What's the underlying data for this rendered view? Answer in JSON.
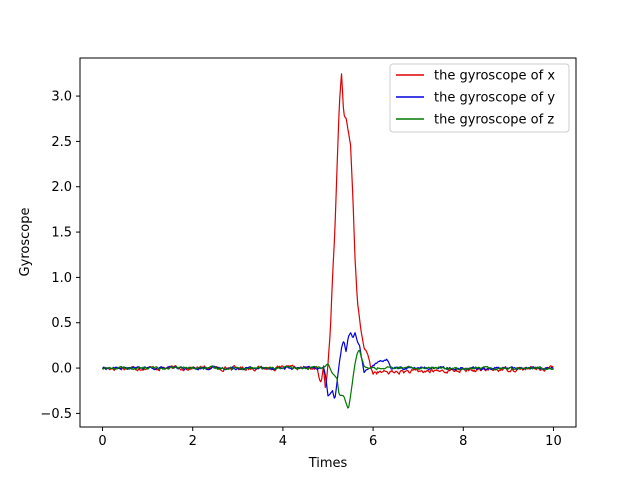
{
  "chart_data": {
    "type": "line",
    "xlabel": "Times",
    "ylabel": "Gyroscope",
    "xlim": [
      -0.5,
      10.5
    ],
    "ylim": [
      -0.65,
      3.42
    ],
    "xticks": [
      0,
      2,
      4,
      6,
      8,
      10
    ],
    "yticks": [
      -0.5,
      0.0,
      0.5,
      1.0,
      1.5,
      2.0,
      2.5,
      3.0
    ],
    "xtick_labels": [
      "0",
      "2",
      "4",
      "6",
      "8",
      "10"
    ],
    "ytick_labels": [
      "−0.5",
      "0.0",
      "0.5",
      "1.0",
      "1.5",
      "2.0",
      "2.5",
      "3.0"
    ],
    "grid": false,
    "legend_position": "top-right",
    "series": [
      {
        "name": "the gyroscope of x",
        "color": "#dd0000",
        "keypoints": [
          [
            0,
            0.0
          ],
          [
            4.75,
            0.0
          ],
          [
            4.85,
            -0.18
          ],
          [
            4.9,
            0.0
          ],
          [
            4.95,
            -0.25
          ],
          [
            5.0,
            0.05
          ],
          [
            5.05,
            0.4
          ],
          [
            5.1,
            1.0
          ],
          [
            5.15,
            1.5
          ],
          [
            5.2,
            2.2
          ],
          [
            5.25,
            2.9
          ],
          [
            5.3,
            3.25
          ],
          [
            5.35,
            2.8
          ],
          [
            5.4,
            2.75
          ],
          [
            5.45,
            2.6
          ],
          [
            5.5,
            2.45
          ],
          [
            5.55,
            1.9
          ],
          [
            5.6,
            1.2
          ],
          [
            5.65,
            0.75
          ],
          [
            5.7,
            0.55
          ],
          [
            5.75,
            0.35
          ],
          [
            5.8,
            0.22
          ],
          [
            5.85,
            0.18
          ],
          [
            5.9,
            0.12
          ],
          [
            5.95,
            0.0
          ],
          [
            6.0,
            -0.05
          ],
          [
            10,
            0.0
          ]
        ],
        "noise": 0.04
      },
      {
        "name": "the gyroscope of y",
        "color": "#0000dd",
        "keypoints": [
          [
            0,
            0.0
          ],
          [
            4.9,
            0.0
          ],
          [
            4.95,
            -0.1
          ],
          [
            5.0,
            -0.3
          ],
          [
            5.1,
            -0.25
          ],
          [
            5.15,
            -0.36
          ],
          [
            5.2,
            -0.15
          ],
          [
            5.25,
            0.05
          ],
          [
            5.3,
            0.22
          ],
          [
            5.35,
            0.3
          ],
          [
            5.4,
            0.18
          ],
          [
            5.45,
            0.35
          ],
          [
            5.5,
            0.39
          ],
          [
            5.55,
            0.33
          ],
          [
            5.6,
            0.38
          ],
          [
            5.65,
            0.3
          ],
          [
            5.7,
            0.25
          ],
          [
            5.75,
            0.1
          ],
          [
            5.8,
            -0.05
          ],
          [
            5.85,
            -0.02
          ],
          [
            5.9,
            0.0
          ],
          [
            6.3,
            0.1
          ],
          [
            6.4,
            0.0
          ],
          [
            10,
            0.0
          ]
        ],
        "noise": 0.025
      },
      {
        "name": "the gyroscope of z",
        "color": "#007700",
        "keypoints": [
          [
            0,
            0.0
          ],
          [
            4.9,
            0.0
          ],
          [
            5.0,
            0.05
          ],
          [
            5.1,
            -0.05
          ],
          [
            5.2,
            -0.12
          ],
          [
            5.25,
            -0.3
          ],
          [
            5.35,
            -0.3
          ],
          [
            5.4,
            -0.38
          ],
          [
            5.45,
            -0.45
          ],
          [
            5.5,
            -0.3
          ],
          [
            5.55,
            -0.12
          ],
          [
            5.6,
            0.05
          ],
          [
            5.65,
            0.18
          ],
          [
            5.7,
            0.2
          ],
          [
            5.75,
            0.1
          ],
          [
            5.8,
            0.02
          ],
          [
            5.85,
            0.0
          ],
          [
            10,
            0.0
          ]
        ],
        "noise": 0.025
      }
    ]
  }
}
